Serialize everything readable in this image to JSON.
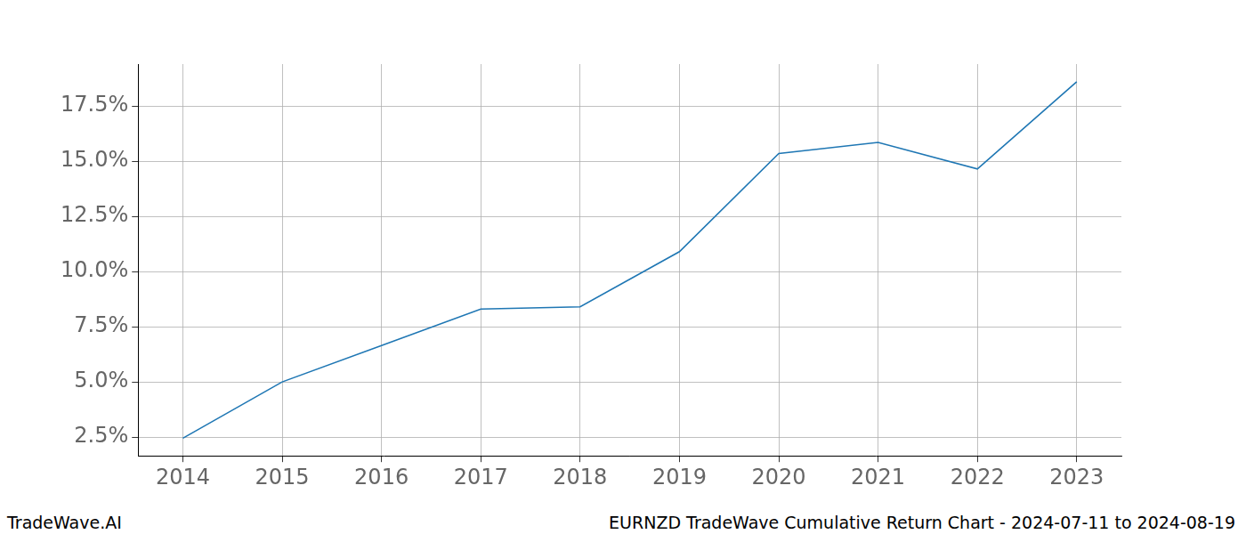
{
  "chart_data": {
    "type": "line",
    "title": "EURNZD TradeWave Cumulative Return Chart - 2024-07-11 to 2024-08-19",
    "source": "TradeWave.AI",
    "x": [
      2014,
      2015,
      2016,
      2017,
      2018,
      2019,
      2020,
      2021,
      2022,
      2023
    ],
    "values": [
      2.45,
      5.0,
      6.65,
      8.3,
      8.4,
      10.9,
      15.35,
      15.85,
      14.65,
      18.6
    ],
    "color": "#1f77b4",
    "xlim": [
      2013.55,
      2023.45
    ],
    "xticks": [
      2014,
      2015,
      2016,
      2017,
      2018,
      2019,
      2020,
      2021,
      2022,
      2023
    ],
    "ylim": [
      1.65,
      19.4
    ],
    "yticks": [
      {
        "value": 2.5,
        "label": "2.5%"
      },
      {
        "value": 5,
        "label": "5.0%"
      },
      {
        "value": 7.5,
        "label": "7.5%"
      },
      {
        "value": 10,
        "label": "10.0%"
      },
      {
        "value": 12.5,
        "label": "12.5%"
      },
      {
        "value": 15,
        "label": "15.0%"
      },
      {
        "value": 17.5,
        "label": "17.5%"
      }
    ],
    "grid": true
  }
}
